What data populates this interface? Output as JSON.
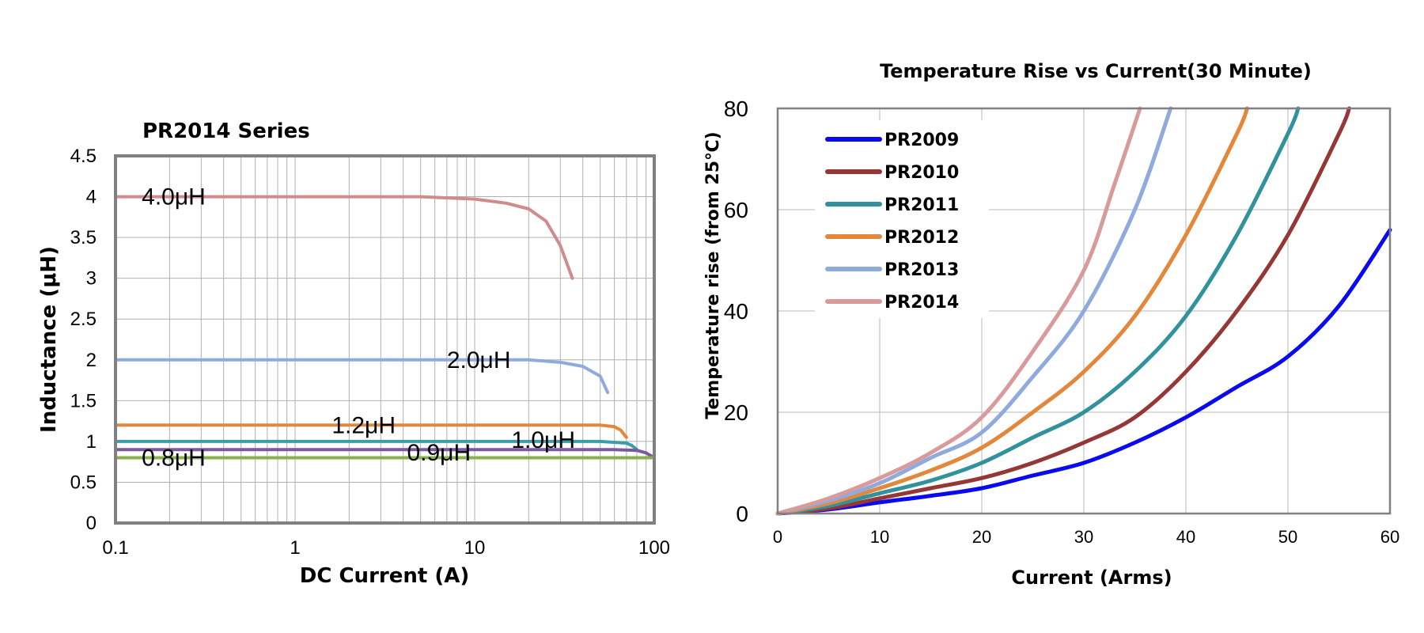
{
  "chart_data": [
    {
      "type": "line",
      "title": "PR2014 Series",
      "xlabel": "DC Current (A)",
      "ylabel": "Inductance (μH)",
      "xscale": "log",
      "xlim": [
        0.1,
        100
      ],
      "ylim": [
        0,
        4.5
      ],
      "x_ticks": [
        "0.1",
        "1",
        "10",
        "100"
      ],
      "y_ticks": [
        "0",
        "0.5",
        "1",
        "1.5",
        "2",
        "2.5",
        "3",
        "3.5",
        "4",
        "4.5"
      ],
      "grid": true,
      "series": [
        {
          "name": "4.0μH",
          "color": "#d08c8c",
          "x": [
            0.1,
            1,
            5,
            10,
            15,
            20,
            25,
            30,
            35
          ],
          "y": [
            4.0,
            4.0,
            4.0,
            3.97,
            3.92,
            3.85,
            3.7,
            3.4,
            3.0
          ]
        },
        {
          "name": "2.0μH",
          "color": "#8faadc",
          "x": [
            0.1,
            1,
            10,
            20,
            30,
            40,
            50,
            55
          ],
          "y": [
            2.0,
            2.0,
            2.0,
            2.0,
            1.97,
            1.92,
            1.8,
            1.6
          ]
        },
        {
          "name": "1.2μH",
          "color": "#e3883a",
          "x": [
            0.1,
            1,
            10,
            50,
            60,
            65,
            70
          ],
          "y": [
            1.2,
            1.2,
            1.2,
            1.2,
            1.18,
            1.14,
            1.05
          ]
        },
        {
          "name": "1.0μH",
          "color": "#3a9ea8",
          "x": [
            0.1,
            1,
            10,
            50,
            70,
            75,
            80
          ],
          "y": [
            1.0,
            1.0,
            1.0,
            1.0,
            0.98,
            0.95,
            0.9
          ]
        },
        {
          "name": "0.9μH",
          "color": "#7a5a9e",
          "x": [
            0.1,
            1,
            10,
            60,
            80,
            90,
            100
          ],
          "y": [
            0.9,
            0.9,
            0.9,
            0.9,
            0.89,
            0.86,
            0.8
          ]
        },
        {
          "name": "0.8μH",
          "color": "#8ab04a",
          "x": [
            0.1,
            1,
            10,
            100
          ],
          "y": [
            0.8,
            0.8,
            0.8,
            0.8
          ]
        }
      ],
      "annotations": [
        "4.0μH",
        "2.0μH",
        "1.2μH",
        "1.0μH",
        "0.9μH",
        "0.8μH"
      ]
    },
    {
      "type": "line",
      "title": "Temperature Rise vs Current(30 Minute)",
      "xlabel": "Current (Arms)",
      "ylabel": "Temperature rise (from 25℃)",
      "xlim": [
        0,
        60
      ],
      "ylim": [
        0,
        80
      ],
      "x_ticks": [
        "0",
        "10",
        "20",
        "30",
        "40",
        "50",
        "60"
      ],
      "y_ticks": [
        "0",
        "20",
        "40",
        "60",
        "80"
      ],
      "grid": true,
      "legend": "top-left",
      "series": [
        {
          "name": "PR2009",
          "color": "#0a0aee",
          "x": [
            0,
            5,
            10,
            15,
            20,
            25,
            30,
            35,
            40,
            45,
            50,
            55,
            60
          ],
          "y": [
            0,
            0.8,
            2.2,
            3.5,
            5,
            7.5,
            10,
            14,
            19,
            25,
            31,
            41,
            56
          ]
        },
        {
          "name": "PR2010",
          "color": "#953735",
          "x": [
            0,
            5,
            10,
            15,
            20,
            25,
            30,
            35,
            40,
            45,
            50,
            55,
            56
          ],
          "y": [
            0,
            1,
            3,
            5,
            7,
            10,
            14,
            19,
            28,
            40,
            55,
            75,
            80
          ]
        },
        {
          "name": "PR2011",
          "color": "#31929e",
          "x": [
            0,
            5,
            10,
            15,
            20,
            25,
            30,
            35,
            40,
            45,
            50,
            51
          ],
          "y": [
            0,
            1.5,
            4,
            6.5,
            10,
            15,
            20,
            28,
            39,
            55,
            75,
            80
          ]
        },
        {
          "name": "PR2012",
          "color": "#e3883a",
          "x": [
            0,
            5,
            10,
            15,
            20,
            25,
            30,
            35,
            40,
            45,
            46
          ],
          "y": [
            0,
            2,
            5,
            8.5,
            13,
            20,
            28,
            39,
            55,
            75,
            80
          ]
        },
        {
          "name": "PR2013",
          "color": "#8faadc",
          "x": [
            0,
            5,
            10,
            15,
            20,
            25,
            30,
            35,
            38.5
          ],
          "y": [
            0,
            2.5,
            6,
            11,
            16,
            27,
            40,
            60,
            80
          ]
        },
        {
          "name": "PR2014",
          "color": "#d89a9a",
          "x": [
            0,
            5,
            10,
            15,
            20,
            25,
            30,
            33,
            35.5
          ],
          "y": [
            0,
            3,
            7,
            12,
            19,
            32,
            48,
            65,
            80
          ]
        }
      ]
    }
  ]
}
